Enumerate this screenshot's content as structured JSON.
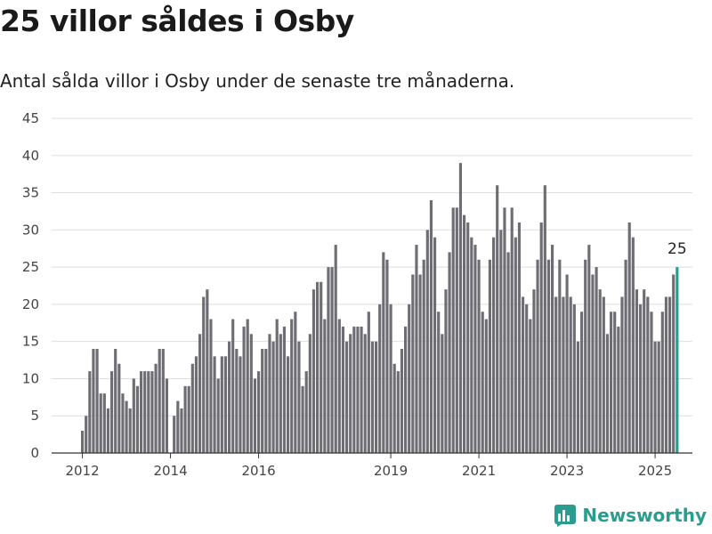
{
  "title": "25 villor såldes i Osby",
  "subtitle": "Antal sålda villor i Osby under de senaste tre månaderna.",
  "brand": "Newsworthy",
  "colors": {
    "bar": "#6e6d73",
    "highlight": "#1f9e92",
    "grid": "#dedede",
    "axis": "#333333",
    "brand": "#2a9d8f"
  },
  "chart_data": {
    "type": "bar",
    "title": "",
    "xlabel": "",
    "ylabel": "",
    "ylim": [
      0,
      45
    ],
    "yticks": [
      0,
      5,
      10,
      15,
      20,
      25,
      30,
      35,
      40,
      45
    ],
    "xticks": [
      "2012",
      "2014",
      "2016",
      "2019",
      "2021",
      "2023",
      "2025"
    ],
    "annotation": "25",
    "grid": true,
    "series": [
      {
        "start": "2012-01",
        "interval": "month",
        "values": [
          3,
          5,
          11,
          14,
          14,
          8,
          8,
          6,
          11,
          14,
          12,
          8,
          7,
          6,
          10,
          9,
          11,
          11,
          11,
          11,
          12,
          14,
          14,
          10,
          0,
          5,
          7,
          6,
          9,
          9,
          12,
          13,
          16,
          21,
          22,
          18,
          13,
          10,
          13,
          13,
          15,
          18,
          14,
          13,
          17,
          18,
          16,
          10,
          11,
          14,
          14,
          16,
          15,
          18,
          16,
          17,
          13,
          18,
          19,
          15,
          9,
          11,
          16,
          22,
          23,
          23,
          18,
          25,
          25,
          28,
          18,
          17,
          15,
          16,
          17,
          17,
          17,
          16,
          19,
          15,
          15,
          20,
          27,
          26,
          20,
          12,
          11,
          14,
          17,
          20,
          24,
          28,
          24,
          26,
          30,
          34,
          29,
          19,
          16,
          22,
          27,
          33,
          33,
          39,
          32,
          31,
          29,
          28,
          26,
          19,
          18,
          26,
          29,
          36,
          30,
          33,
          27,
          33,
          29,
          31,
          21,
          20,
          18,
          22,
          26,
          31,
          36,
          26,
          28,
          21,
          26,
          21,
          24,
          21,
          20,
          15,
          19,
          26,
          28,
          24,
          25,
          22,
          21,
          16,
          19,
          19,
          17,
          21,
          26,
          31,
          29,
          22,
          20,
          22,
          21,
          19,
          15,
          15,
          19,
          21,
          21,
          24,
          25
        ],
        "highlight_last": true
      }
    ]
  }
}
